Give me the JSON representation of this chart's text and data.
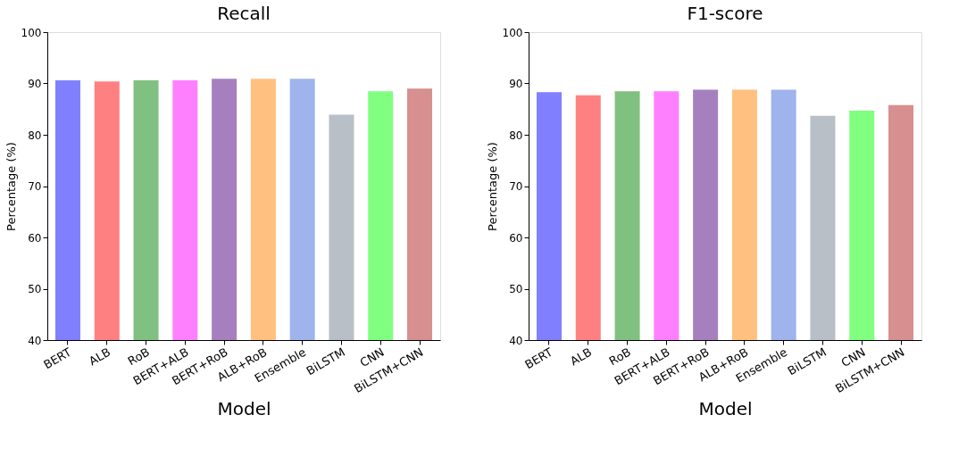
{
  "chart_data": [
    {
      "type": "bar",
      "title": "Recall",
      "xlabel": "Model",
      "ylabel": "Percentage (%)",
      "categories": [
        "BERT",
        "ALB",
        "RoB",
        "BERT+ALB",
        "BERT+RoB",
        "ALB+RoB",
        "Ensemble",
        "BiLSTM",
        "CNN",
        "BiLSTM+CNN"
      ],
      "values": [
        90.6,
        90.4,
        90.6,
        90.6,
        90.9,
        90.9,
        90.9,
        83.9,
        88.5,
        89.0
      ],
      "colors": [
        "#8080ff",
        "#ff8080",
        "#80c080",
        "#ff80ff",
        "#a680be",
        "#ffc080",
        "#9fb3ec",
        "#b8bfc7",
        "#80ff80",
        "#d78f8f"
      ],
      "ylim": [
        40,
        100
      ],
      "yticks": [
        40,
        50,
        60,
        70,
        80,
        90,
        100
      ],
      "grid": false,
      "legend": false
    },
    {
      "type": "bar",
      "title": "F1-score",
      "xlabel": "Model",
      "ylabel": "Percentage (%)",
      "categories": [
        "BERT",
        "ALB",
        "RoB",
        "BERT+ALB",
        "BERT+RoB",
        "ALB+RoB",
        "Ensemble",
        "BiLSTM",
        "CNN",
        "BiLSTM+CNN"
      ],
      "values": [
        88.3,
        87.7,
        88.5,
        88.5,
        88.8,
        88.8,
        88.8,
        83.7,
        84.7,
        85.8
      ],
      "colors": [
        "#8080ff",
        "#ff8080",
        "#80c080",
        "#ff80ff",
        "#a680be",
        "#ffc080",
        "#9fb3ec",
        "#b8bfc7",
        "#80ff80",
        "#d78f8f"
      ],
      "ylim": [
        40,
        100
      ],
      "yticks": [
        40,
        50,
        60,
        70,
        80,
        90,
        100
      ],
      "grid": false,
      "legend": false
    }
  ]
}
